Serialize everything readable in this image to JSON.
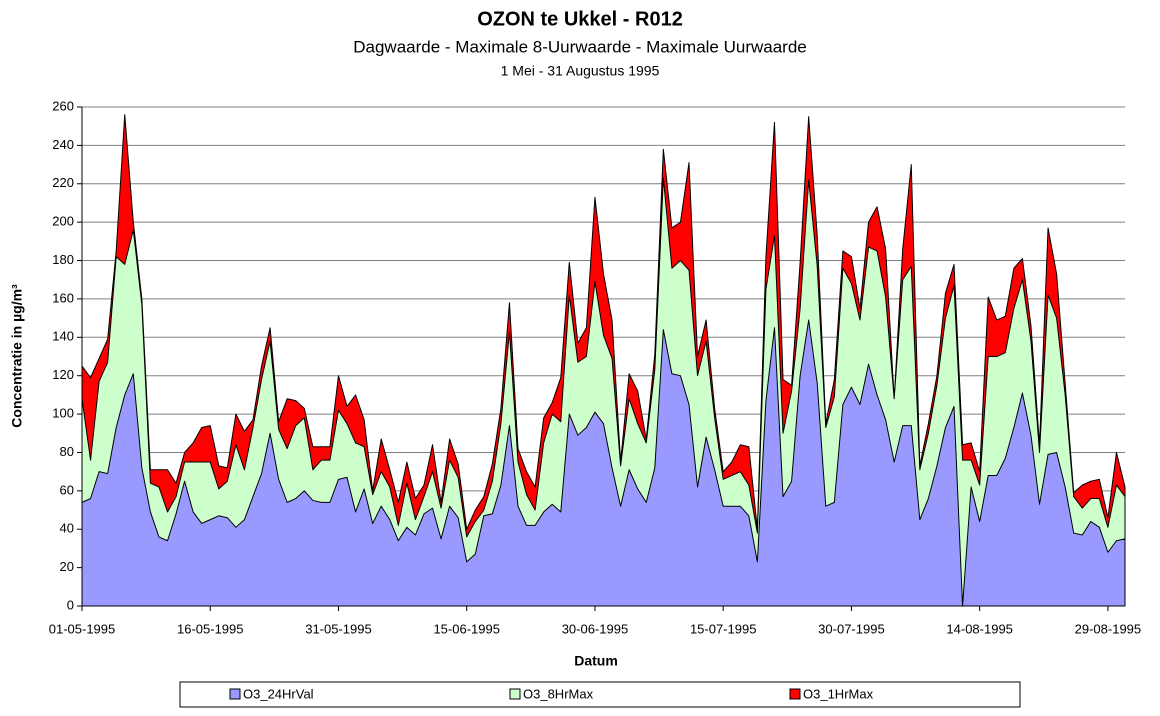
{
  "chart_data": {
    "type": "area",
    "title": "OZON te Ukkel - R012",
    "subtitle": "Dagwaarde  -  Maximale 8-Uurwaarde  -  Maximale Uurwaarde",
    "period": "1 Mei - 31 Augustus 1995",
    "x_label": "Datum",
    "y_label": "Concentratie in µg/m³",
    "categories": [
      "01-05-1995",
      null,
      null,
      null,
      null,
      null,
      null,
      null,
      null,
      null,
      null,
      null,
      null,
      null,
      null,
      "16-05-1995",
      null,
      null,
      null,
      null,
      null,
      null,
      null,
      null,
      null,
      null,
      null,
      null,
      null,
      null,
      "31-05-1995",
      null,
      null,
      null,
      null,
      null,
      null,
      null,
      null,
      null,
      null,
      null,
      null,
      null,
      null,
      "15-06-1995",
      null,
      null,
      null,
      null,
      null,
      null,
      null,
      null,
      null,
      null,
      null,
      null,
      null,
      null,
      "30-06-1995",
      null,
      null,
      null,
      null,
      null,
      null,
      null,
      null,
      null,
      null,
      null,
      null,
      null,
      null,
      "15-07-1995",
      null,
      null,
      null,
      null,
      null,
      null,
      null,
      null,
      null,
      null,
      null,
      null,
      null,
      null,
      "30-07-1995",
      null,
      null,
      null,
      null,
      null,
      null,
      null,
      null,
      null,
      null,
      null,
      null,
      null,
      null,
      "14-08-1995",
      null,
      null,
      null,
      null,
      null,
      null,
      null,
      null,
      null,
      null,
      null,
      null,
      null,
      null,
      "29-08-1995",
      null,
      null
    ],
    "series": [
      {
        "name": "O3_24HrVal",
        "color": "#9999ff",
        "values": [
          54,
          56,
          70,
          69,
          93,
          110,
          121,
          72,
          49,
          36,
          34,
          48,
          65,
          49,
          43,
          45,
          47,
          46,
          41,
          45,
          57,
          69,
          90,
          66,
          54,
          56,
          60,
          55,
          54,
          54,
          66,
          67,
          49,
          61,
          43,
          52,
          45,
          34,
          41,
          37,
          48,
          51,
          35,
          52,
          46,
          23,
          27,
          47,
          48,
          63,
          94,
          52,
          42,
          42,
          49,
          53,
          49,
          100,
          89,
          93,
          101,
          95,
          72,
          52,
          71,
          61,
          54,
          72,
          144,
          121,
          120,
          105,
          62,
          88,
          71,
          52,
          52,
          52,
          47,
          23,
          107,
          145,
          57,
          65,
          120,
          149,
          116,
          52,
          54,
          105,
          114,
          105,
          126,
          110,
          97,
          75,
          94,
          94,
          45,
          56,
          73,
          93,
          104,
          0,
          62,
          44,
          68,
          68,
          77,
          93,
          111,
          89,
          53,
          79,
          80,
          62,
          38,
          37,
          44,
          41,
          28,
          34,
          35
        ]
      },
      {
        "name": "O3_8HrMax",
        "color": "#ccffcc",
        "values": [
          108,
          76,
          117,
          127,
          182,
          178,
          196,
          157,
          64,
          62,
          49,
          57,
          75,
          75,
          75,
          75,
          61,
          65,
          84,
          71,
          93,
          118,
          138,
          92,
          82,
          94,
          98,
          71,
          76,
          76,
          102,
          95,
          85,
          83,
          58,
          70,
          62,
          42,
          64,
          45,
          57,
          70,
          51,
          76,
          67,
          36,
          44,
          50,
          65,
          95,
          143,
          75,
          58,
          50,
          85,
          100,
          96,
          162,
          127,
          130,
          169,
          141,
          129,
          73,
          108,
          95,
          85,
          123,
          223,
          176,
          180,
          175,
          120,
          138,
          98,
          66,
          68,
          70,
          63,
          38,
          165,
          193,
          90,
          112,
          155,
          222,
          177,
          93,
          109,
          176,
          168,
          149,
          187,
          185,
          161,
          108,
          170,
          177,
          71,
          90,
          115,
          150,
          167,
          76,
          76,
          63,
          130,
          130,
          132,
          155,
          170,
          138,
          80,
          162,
          150,
          110,
          57,
          51,
          56,
          56,
          41,
          63,
          57
        ]
      },
      {
        "name": "O3_1HrMax",
        "color": "#ff0000",
        "values": [
          125,
          119,
          129,
          139,
          185,
          256,
          200,
          160,
          71,
          71,
          71,
          64,
          80,
          85,
          93,
          94,
          73,
          72,
          100,
          91,
          97,
          125,
          145,
          96,
          108,
          107,
          103,
          83,
          83,
          83,
          120,
          104,
          110,
          97,
          60,
          87,
          71,
          54,
          75,
          56,
          63,
          84,
          54,
          87,
          74,
          40,
          50,
          57,
          74,
          103,
          158,
          82,
          70,
          62,
          98,
          106,
          119,
          179,
          137,
          145,
          213,
          173,
          149,
          75,
          121,
          112,
          87,
          131,
          238,
          197,
          200,
          231,
          130,
          149,
          103,
          70,
          75,
          84,
          83,
          40,
          182,
          252,
          118,
          115,
          179,
          255,
          193,
          95,
          118,
          185,
          182,
          155,
          200,
          208,
          186,
          108,
          186,
          230,
          73,
          95,
          120,
          163,
          178,
          84,
          85,
          70,
          161,
          149,
          151,
          176,
          181,
          146,
          84,
          197,
          173,
          116,
          59,
          63,
          65,
          66,
          46,
          80,
          62
        ]
      }
    ],
    "ylim": [
      0,
      260
    ],
    "yticks": [
      0,
      20,
      40,
      60,
      80,
      100,
      120,
      140,
      160,
      180,
      200,
      220,
      240,
      260
    ],
    "grid": true
  }
}
